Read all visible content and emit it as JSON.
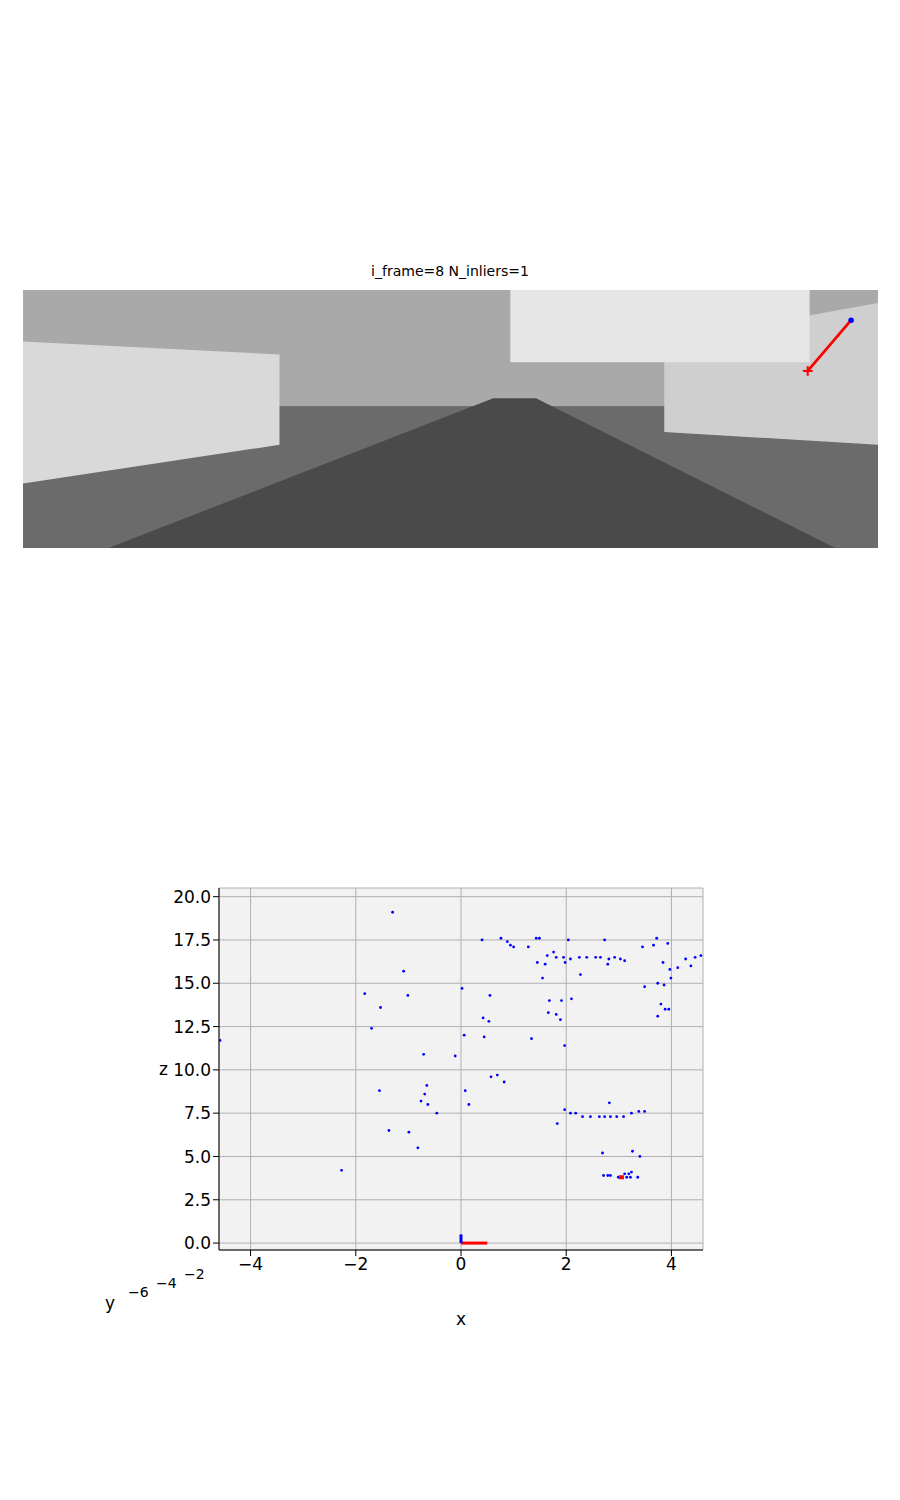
{
  "image": {
    "title": "i_frame=8 N_inliers=1",
    "width": 1241,
    "height": 376,
    "track": [
      {
        "x": 1202,
        "y": 44,
        "color": "#0000ff",
        "marker": "point"
      },
      {
        "x": 1139,
        "y": 118,
        "color": "#ff0000",
        "marker": "plus"
      }
    ]
  },
  "chart_data": {
    "type": "scatter",
    "xlabel": "x",
    "ylabel": "z",
    "xlim": [
      -4.6,
      4.6
    ],
    "ylim": [
      -0.4,
      20.5
    ],
    "xticks": [
      {
        "value": -4,
        "label": "−4"
      },
      {
        "value": -2,
        "label": "−2"
      },
      0,
      2,
      4
    ],
    "yticks": [
      {
        "value": 0,
        "label": "0.0"
      },
      2.5,
      {
        "value": 5,
        "label": "5.0"
      },
      7.5,
      {
        "value": 10,
        "label": "10.0"
      },
      12.5,
      {
        "value": 15,
        "label": "15.0"
      },
      17.5,
      {
        "value": 20,
        "label": "20.0"
      }
    ],
    "y_depth_label": "y",
    "y_depth_ticks": [
      {
        "value": -6,
        "label": "−6"
      },
      {
        "value": -4,
        "label": "−4"
      },
      {
        "value": -2,
        "label": "−2"
      }
    ],
    "grid": true,
    "series": [
      {
        "type": "scatter",
        "color": "#0000ff",
        "marker": "point",
        "x": [
          -1.3,
          0.76,
          0.4,
          0.88,
          0.94,
          1.0,
          1.49,
          1.43,
          2.04,
          2.73,
          3.72,
          3.66,
          3.93,
          3.45,
          1.28,
          1.76,
          1.64,
          1.81,
          1.95,
          2.08,
          2.25,
          2.39,
          2.56,
          2.65,
          2.81,
          2.92,
          3.03,
          3.11,
          1.45,
          1.6,
          1.98,
          2.27,
          1.55,
          2.79,
          -1.09,
          3.84,
          3.97,
          4.12,
          4.27,
          4.37,
          4.56,
          4.45,
          3.99,
          3.86,
          3.49,
          3.74,
          3.8,
          3.88,
          3.95,
          3.74,
          0.02,
          -1.83,
          -1.01,
          0.55,
          1.68,
          1.91,
          2.1,
          -1.53,
          1.66,
          1.89,
          1.81,
          0.42,
          0.53,
          -1.7,
          0.06,
          0.44,
          1.34,
          1.97,
          -0.71,
          -0.11,
          0.57,
          0.69,
          0.82,
          -1.55,
          -0.65,
          -0.69,
          -0.76,
          -0.63,
          -0.46,
          0.08,
          0.15,
          2.82,
          1.97,
          2.08,
          2.18,
          2.31,
          2.46,
          2.63,
          2.73,
          2.84,
          2.96,
          3.09,
          3.24,
          3.38,
          3.49,
          1.83,
          -1.37,
          -0.99,
          -0.82,
          2.69,
          3.26,
          3.4,
          -2.27,
          2.71,
          2.79,
          2.84,
          3.11,
          3.19,
          3.24,
          3.15,
          3.22,
          3.36,
          2.99,
          -4.58
        ],
        "values": [
          19.1,
          17.6,
          17.5,
          17.4,
          17.2,
          17.1,
          17.6,
          17.6,
          17.5,
          17.5,
          17.6,
          17.2,
          17.3,
          17.1,
          17.1,
          16.8,
          16.6,
          16.5,
          16.5,
          16.4,
          16.5,
          16.5,
          16.5,
          16.5,
          16.4,
          16.5,
          16.4,
          16.3,
          16.2,
          16.1,
          16.2,
          15.5,
          15.3,
          16.1,
          15.7,
          16.2,
          15.8,
          15.9,
          16.4,
          16.0,
          16.6,
          16.5,
          15.3,
          14.9,
          14.8,
          15.0,
          13.8,
          13.5,
          13.5,
          13.1,
          14.7,
          14.4,
          14.3,
          14.3,
          14.0,
          14.0,
          14.1,
          13.6,
          13.3,
          12.9,
          13.2,
          13.0,
          12.8,
          12.4,
          12.0,
          11.9,
          11.8,
          11.4,
          10.9,
          10.8,
          9.6,
          9.7,
          9.3,
          8.8,
          9.1,
          8.6,
          8.2,
          8.0,
          7.5,
          8.8,
          8.0,
          8.1,
          7.7,
          7.5,
          7.5,
          7.3,
          7.3,
          7.3,
          7.3,
          7.3,
          7.3,
          7.3,
          7.5,
          7.6,
          7.6,
          6.9,
          6.5,
          6.4,
          5.5,
          5.2,
          5.3,
          5.0,
          4.2,
          3.9,
          3.9,
          3.9,
          4.0,
          4.0,
          4.1,
          3.8,
          3.8,
          3.8,
          3.8,
          11.7
        ]
      },
      {
        "type": "scatter",
        "color": "#ff0000",
        "marker": "square",
        "x": [
          3.05
        ],
        "values": [
          3.8
        ]
      },
      {
        "type": "line",
        "color": "#ff0000",
        "x": [
          0,
          0.5
        ],
        "values": [
          0,
          0
        ]
      },
      {
        "type": "line",
        "color": "#0000ff",
        "x": [
          0,
          0
        ],
        "values": [
          0,
          0.5
        ]
      }
    ]
  }
}
